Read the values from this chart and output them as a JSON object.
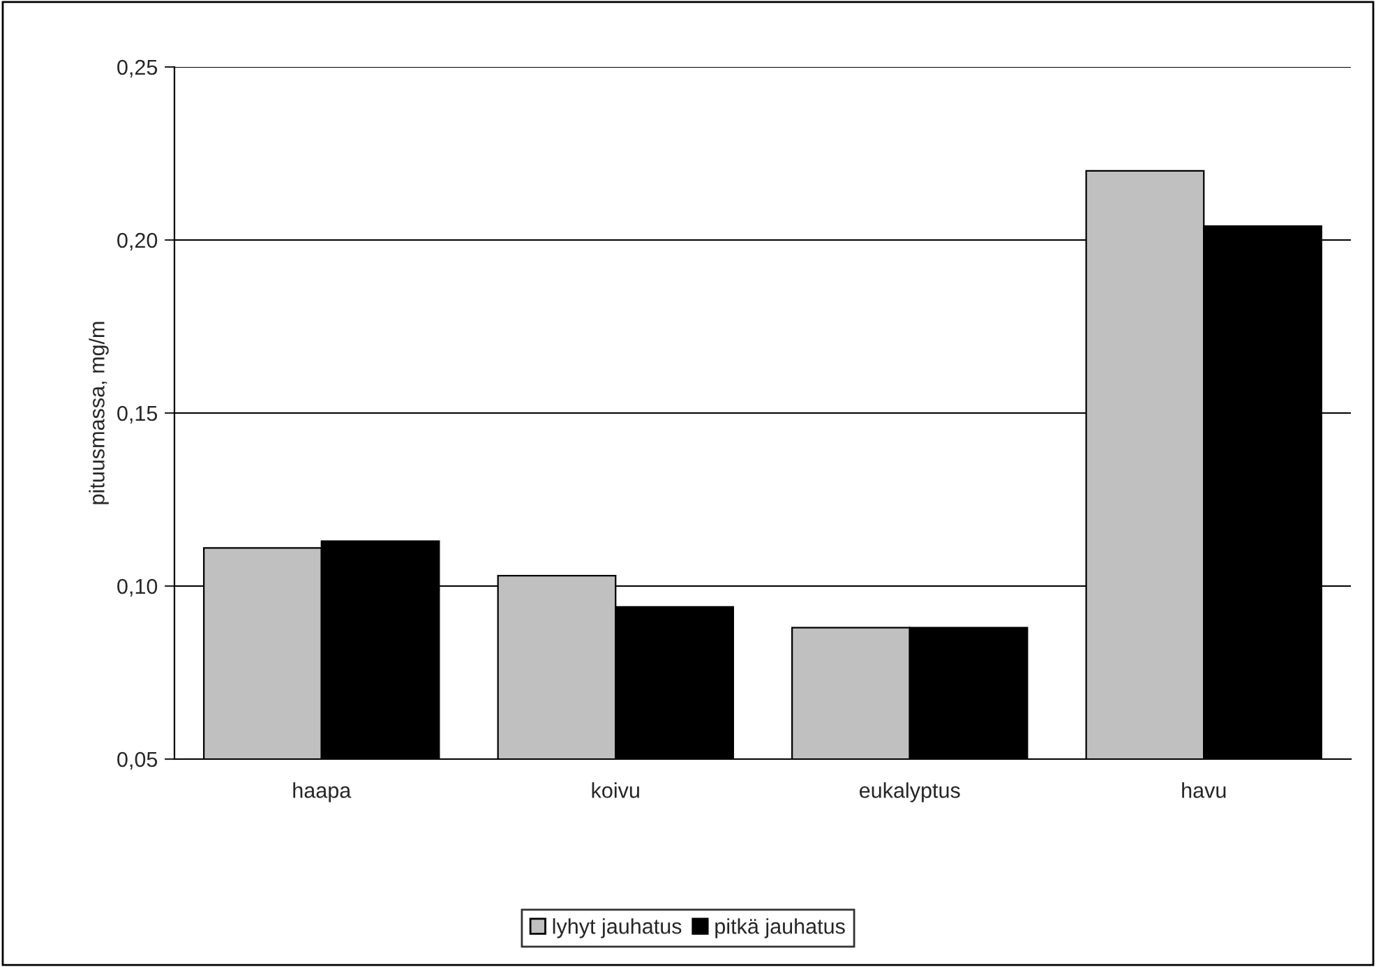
{
  "chart_data": {
    "type": "bar",
    "ylabel": "pituusmassa, mg/m",
    "categories": [
      "haapa",
      "koivu",
      "eukalyptus",
      "havu"
    ],
    "series": [
      {
        "name": "lyhyt jauhatus",
        "color": "#c0c0c0",
        "values": [
          0.111,
          0.103,
          0.088,
          0.22
        ]
      },
      {
        "name": "pitkä jauhatus",
        "color": "#000000",
        "values": [
          0.113,
          0.094,
          0.088,
          0.204
        ]
      }
    ],
    "ylim": [
      0.05,
      0.25
    ],
    "yticks": [
      {
        "value": 0.05,
        "label": "0,05"
      },
      {
        "value": 0.1,
        "label": "0,10"
      },
      {
        "value": 0.15,
        "label": "0,15"
      },
      {
        "value": 0.2,
        "label": "0,20"
      },
      {
        "value": 0.25,
        "label": "0,25"
      }
    ],
    "grid": "y",
    "legend": "bottom"
  }
}
